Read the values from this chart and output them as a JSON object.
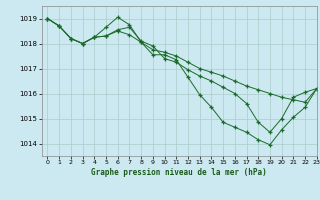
{
  "title": "Graphe pression niveau de la mer (hPa)",
  "bg_color": "#cce8f0",
  "grid_color": "#aacccc",
  "line_color": "#1a6b2a",
  "marker_color": "#1a6b2a",
  "xlim": [
    -0.5,
    23
  ],
  "ylim": [
    1013.5,
    1019.5
  ],
  "yticks": [
    1014,
    1015,
    1016,
    1017,
    1018,
    1019
  ],
  "xticks": [
    0,
    1,
    2,
    3,
    4,
    5,
    6,
    7,
    8,
    9,
    10,
    11,
    12,
    13,
    14,
    15,
    16,
    17,
    18,
    19,
    20,
    21,
    22,
    23
  ],
  "series": [
    [
      1019.0,
      1018.7,
      1018.2,
      1018.0,
      1018.25,
      1018.3,
      1018.55,
      1018.65,
      1018.1,
      1017.9,
      1017.4,
      1017.25,
      1016.95,
      1016.7,
      1016.5,
      1016.25,
      1016.0,
      1015.6,
      1014.85,
      1014.45,
      1015.0,
      1015.85,
      1016.05,
      1016.2
    ],
    [
      1019.0,
      1018.7,
      1018.2,
      1018.0,
      1018.25,
      1018.65,
      1019.05,
      1018.75,
      1018.05,
      1017.55,
      1017.55,
      1017.35,
      1016.65,
      1015.95,
      1015.45,
      1014.85,
      1014.65,
      1014.45,
      1014.15,
      1013.95,
      1014.55,
      1015.05,
      1015.45,
      1016.2
    ],
    [
      1019.0,
      1018.7,
      1018.2,
      1018.0,
      1018.25,
      1018.3,
      1018.5,
      1018.35,
      1018.05,
      1017.75,
      1017.65,
      1017.5,
      1017.25,
      1017.0,
      1016.85,
      1016.7,
      1016.5,
      1016.3,
      1016.15,
      1016.0,
      1015.85,
      1015.75,
      1015.65,
      1016.2
    ]
  ]
}
